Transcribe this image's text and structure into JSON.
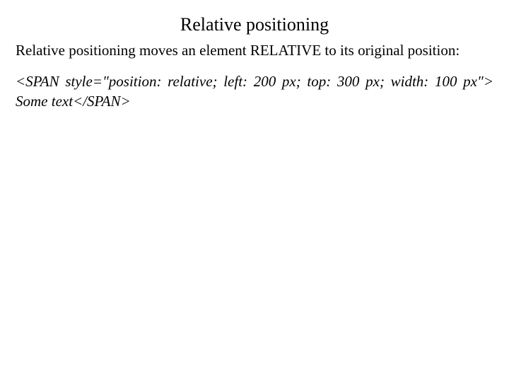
{
  "doc": {
    "title": "Relative positioning",
    "description": "Relative positioning moves an element RELATIVE to its original position:",
    "code": "<SPAN style=\"position: relative; left: 200 px; top: 300 px; width: 100 px\"> Some text</SPAN>",
    "colors": {
      "background": "#ffffff",
      "text": "#000000"
    },
    "typography": {
      "font_family": "Times New Roman",
      "title_fontsize": 26,
      "body_fontsize": 21,
      "code_style": "italic"
    }
  }
}
